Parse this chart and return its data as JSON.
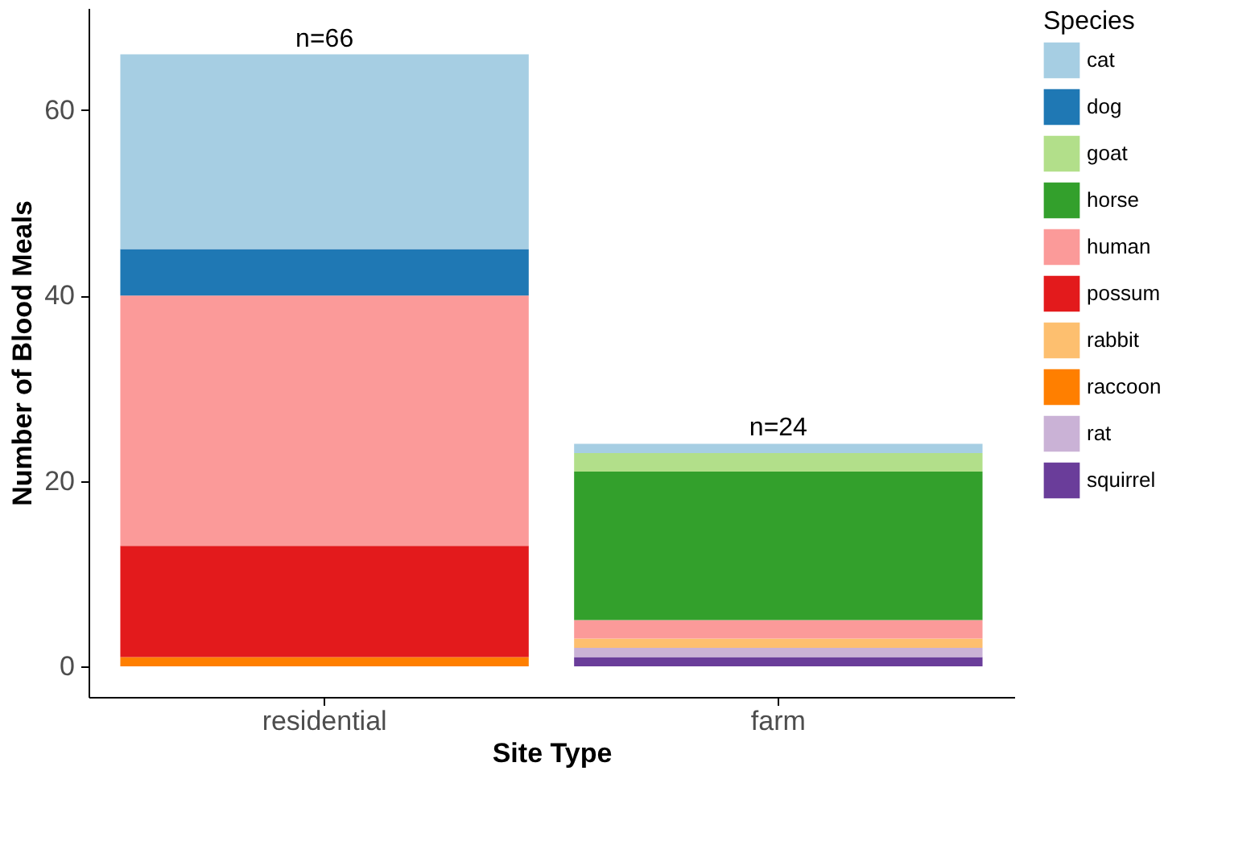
{
  "chart_data": {
    "type": "bar",
    "stacked": true,
    "xlabel": "Site Type",
    "ylabel": "Number of Blood Meals",
    "legend_title": "Species",
    "legend": "right",
    "grid": false,
    "categories": [
      "residential",
      "farm"
    ],
    "series": [
      {
        "name": "squirrel",
        "color": "#6a3d9a",
        "values": [
          null,
          1
        ]
      },
      {
        "name": "rat",
        "color": "#cab2d6",
        "values": [
          null,
          1
        ]
      },
      {
        "name": "raccoon",
        "color": "#ff7f00",
        "values": [
          1,
          null
        ]
      },
      {
        "name": "rabbit",
        "color": "#fdbf6f",
        "values": [
          null,
          1
        ]
      },
      {
        "name": "possum",
        "color": "#e31a1c",
        "values": [
          12,
          null
        ]
      },
      {
        "name": "human",
        "color": "#fb9a99",
        "values": [
          27,
          2
        ]
      },
      {
        "name": "horse",
        "color": "#33a02c",
        "values": [
          null,
          16
        ]
      },
      {
        "name": "goat",
        "color": "#b2df8a",
        "values": [
          null,
          2
        ]
      },
      {
        "name": "dog",
        "color": "#1f78b4",
        "values": [
          5,
          null
        ]
      },
      {
        "name": "cat",
        "color": "#a6cee3",
        "values": [
          21,
          1
        ]
      }
    ],
    "ylim": [
      -3.3,
      71
    ],
    "yticks": [
      0,
      20,
      40,
      60
    ],
    "annotations": [
      {
        "text": "n=66",
        "x": "residential",
        "y": 66
      },
      {
        "text": "n=24",
        "x": "farm",
        "y": 24
      }
    ]
  }
}
